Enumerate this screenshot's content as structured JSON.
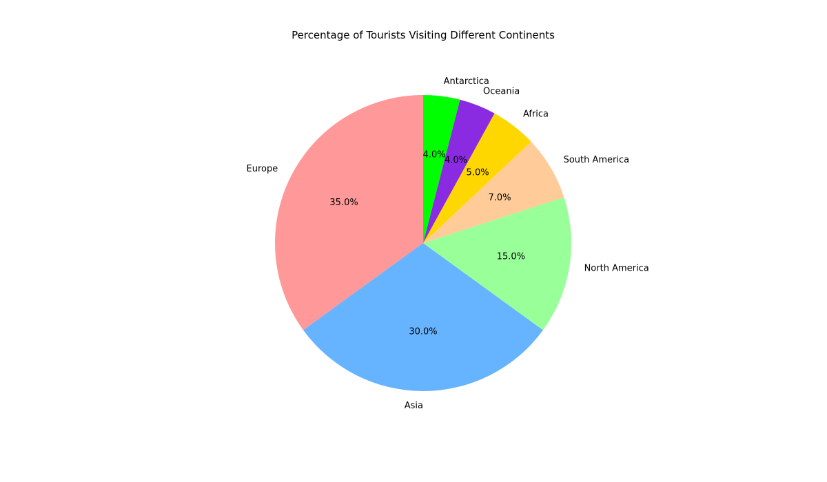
{
  "chart_data": {
    "type": "pie",
    "title": "Percentage of Tourists Visiting Different Continents",
    "categories": [
      "Europe",
      "Asia",
      "North America",
      "South America",
      "Africa",
      "Oceania",
      "Antarctica"
    ],
    "values": [
      35,
      30,
      15,
      7,
      5,
      4,
      4
    ],
    "value_labels": [
      "35.0%",
      "30.0%",
      "15.0%",
      "7.0%",
      "5.0%",
      "4.0%",
      "4.0%"
    ],
    "colors": [
      "#ff9999",
      "#66b3ff",
      "#99ff99",
      "#ffcc99",
      "#ffd700",
      "#8a2be2",
      "#00ff00"
    ],
    "start_angle_deg": 90,
    "direction": "counterclockwise",
    "legend": "none"
  }
}
